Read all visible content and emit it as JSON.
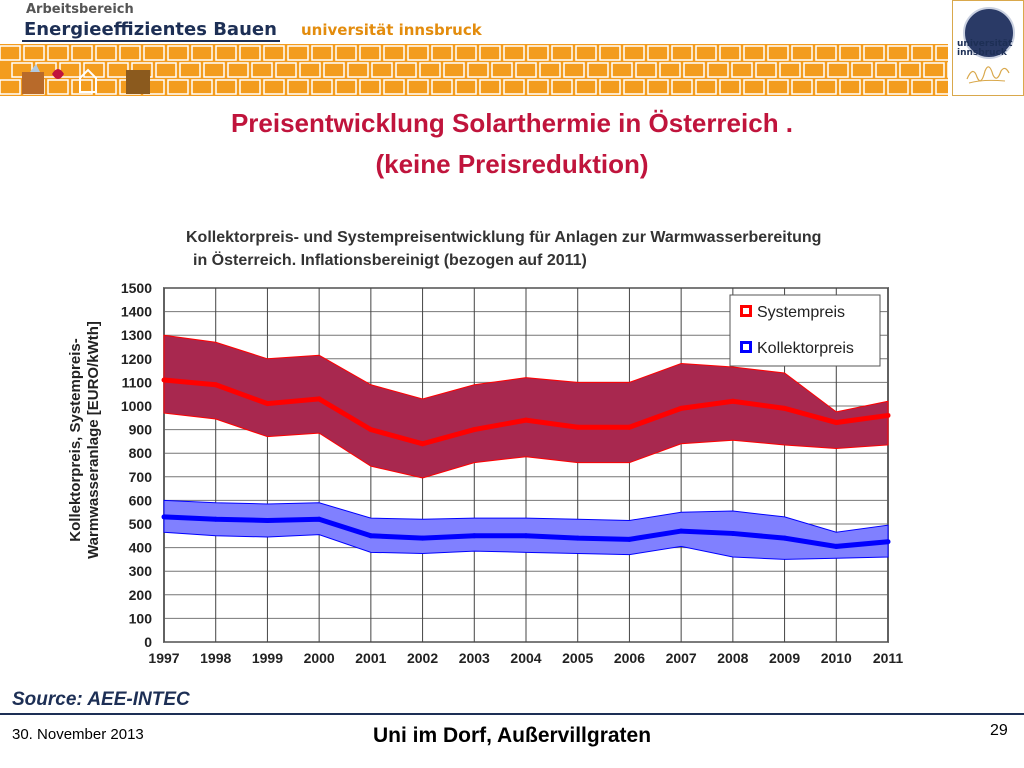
{
  "header": {
    "dept_small": "Arbeitsbereich",
    "dept_big": "Energieeffizientes Bauen",
    "university": "universität innsbruck",
    "seal_text": "universität\ninnsbruck",
    "band_colors": [
      "#f39c1e",
      "#ffffff"
    ]
  },
  "slide": {
    "title_line1": "Preisentwicklung Solarthermie in Österreich .",
    "title_line2": "(keine Preisreduktion)",
    "title_color": "#c0143c"
  },
  "chart_data": {
    "type": "area",
    "title_line1": "Kollektorpreis- und Systempreisentwicklung für Anlagen zur Warmwasserbereitung",
    "title_line2": "in Österreich. Inflationsbereinigt (bezogen auf 2011)",
    "ylabel_line1": "Kollektorpreis, Systempreis-",
    "ylabel_line2": "Warmwasseranlage [EURO/kWth]",
    "xlabel": "",
    "x": [
      1997,
      1998,
      1999,
      2000,
      2001,
      2002,
      2003,
      2004,
      2005,
      2006,
      2007,
      2008,
      2009,
      2010,
      2011
    ],
    "ylim": [
      0,
      1500
    ],
    "yticks": [
      0,
      100,
      200,
      300,
      400,
      500,
      600,
      700,
      800,
      900,
      1000,
      1100,
      1200,
      1300,
      1400,
      1500
    ],
    "grid": true,
    "legend_position": "top-right",
    "series": [
      {
        "name": "Systempreis",
        "color": "#ff0000",
        "band_color": "#a8284f",
        "values": [
          1110,
          1090,
          1010,
          1030,
          900,
          840,
          900,
          940,
          910,
          910,
          990,
          1020,
          990,
          930,
          960
        ],
        "upper": [
          1300,
          1270,
          1200,
          1215,
          1090,
          1030,
          1090,
          1120,
          1100,
          1100,
          1180,
          1165,
          1140,
          975,
          1020
        ],
        "lower": [
          970,
          945,
          870,
          885,
          745,
          695,
          760,
          785,
          760,
          760,
          840,
          855,
          835,
          820,
          835
        ]
      },
      {
        "name": "Kollektorpreis",
        "color": "#0000ff",
        "band_color": "#8080ff",
        "values": [
          530,
          520,
          515,
          520,
          450,
          440,
          450,
          450,
          440,
          435,
          470,
          460,
          440,
          405,
          425
        ],
        "upper": [
          600,
          590,
          585,
          590,
          525,
          520,
          525,
          525,
          520,
          515,
          550,
          555,
          530,
          465,
          495
        ],
        "lower": [
          465,
          450,
          445,
          455,
          380,
          375,
          385,
          380,
          375,
          370,
          405,
          360,
          350,
          355,
          360
        ]
      }
    ]
  },
  "footer": {
    "source": "Source: AEE-INTEC",
    "date": "30. November 2013",
    "center": "Uni im Dorf, Außervillgraten",
    "page": "29"
  }
}
